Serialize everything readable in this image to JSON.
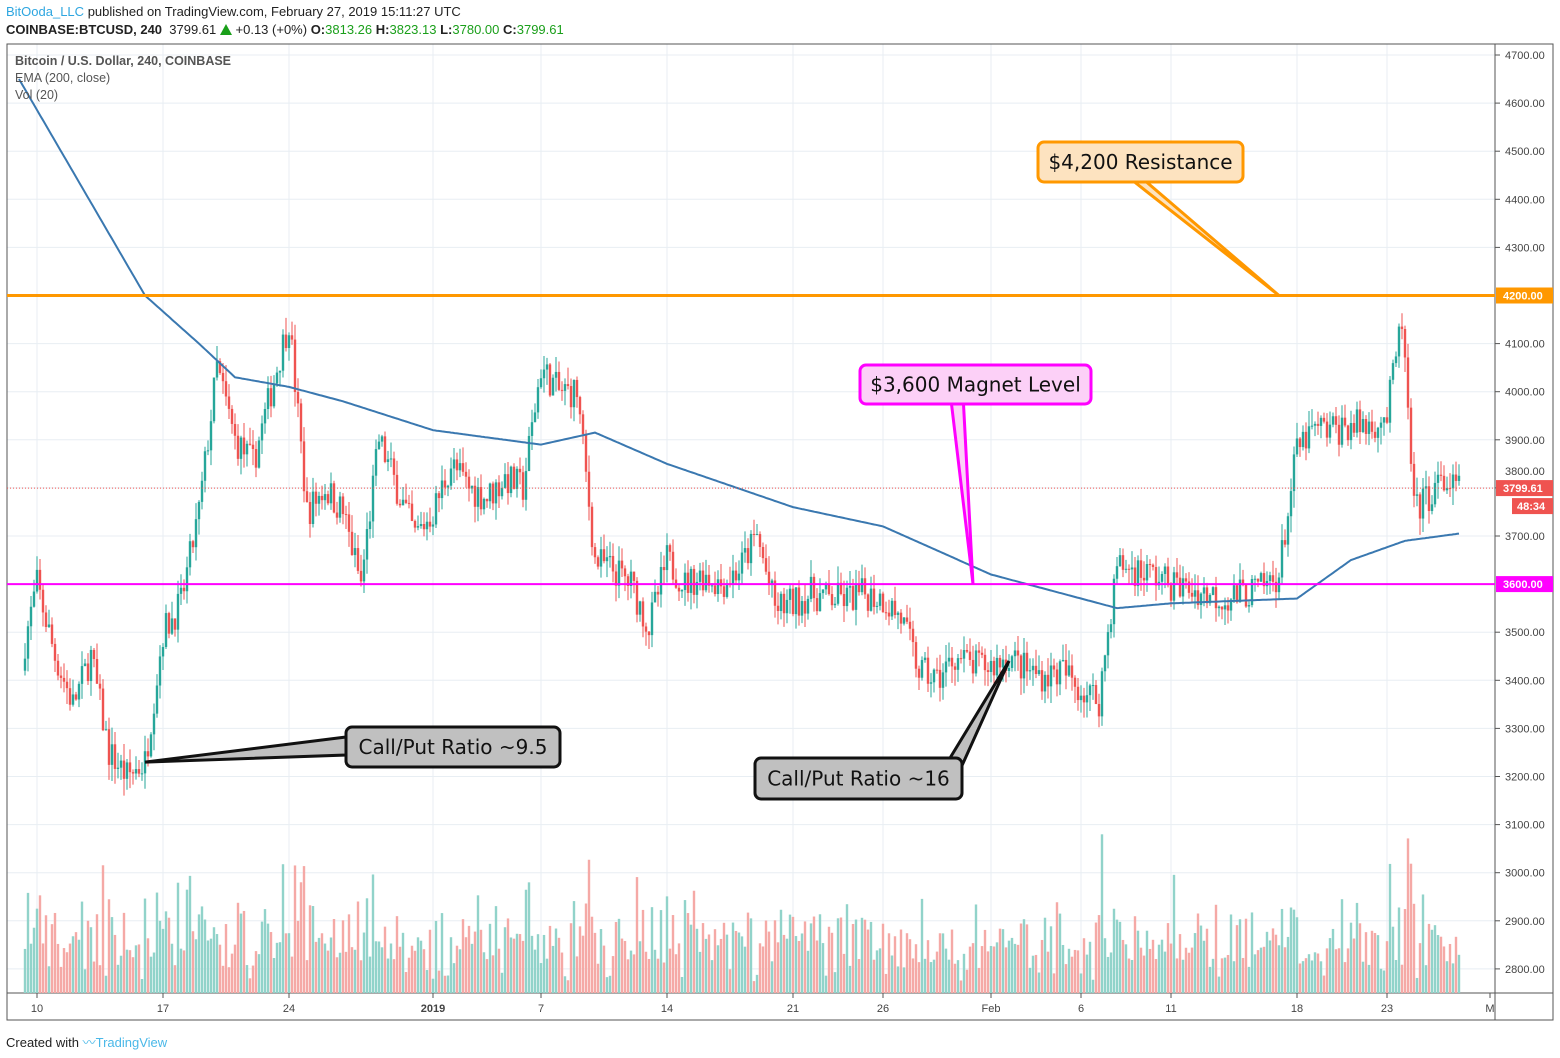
{
  "header": {
    "publisher": "BitOoda_LLC",
    "published_text": "published on TradingView.com, February 27, 2019 15:11:27 UTC",
    "symbol": "COINBASE:BTCUSD, 240",
    "last": "3799.61",
    "change": "+0.13 (+0%)",
    "o_label": "O:",
    "o": "3813.26",
    "h_label": "H:",
    "h": "3823.13",
    "l_label": "L:",
    "l": "3780.00",
    "c_label": "C:",
    "c": "3799.61"
  },
  "legend": {
    "title": "Bitcoin / U.S. Dollar, 240, COINBASE",
    "ema": "EMA (200, close)",
    "vol": "Vol (20)"
  },
  "footer": {
    "created": "Created with",
    "brand": "TradingView"
  },
  "colors": {
    "up": "#26a69a",
    "down": "#ef5350",
    "vol_up": "#91d3ca",
    "vol_down": "#f5a9a6",
    "ema": "#3a78b0",
    "resistance": "#ff9800",
    "magnet": "#ff00ff"
  },
  "chart_data": {
    "type": "candlestick",
    "interval": "240",
    "ylim": [
      2750,
      4720
    ],
    "y_ticks": [
      "2800.00",
      "2900.00",
      "3000.00",
      "3100.00",
      "3200.00",
      "3300.00",
      "3400.00",
      "3500.00",
      "3600.00",
      "3700.00",
      "3800.00",
      "3900.00",
      "4000.00",
      "4100.00",
      "4200.00",
      "4300.00",
      "4400.00",
      "4500.00",
      "4600.00",
      "4700.00"
    ],
    "x_ticks": [
      {
        "label": "10",
        "date": "2018-12-10"
      },
      {
        "label": "17",
        "date": "2018-12-17"
      },
      {
        "label": "24",
        "date": "2018-12-24"
      },
      {
        "label": "2019",
        "date": "2019-01-01"
      },
      {
        "label": "7",
        "date": "2019-01-07"
      },
      {
        "label": "14",
        "date": "2019-01-14"
      },
      {
        "label": "21",
        "date": "2019-01-21"
      },
      {
        "label": "26",
        "date": "2019-01-26"
      },
      {
        "label": "Feb",
        "date": "2019-02-01"
      },
      {
        "label": "6",
        "date": "2019-02-06"
      },
      {
        "label": "11",
        "date": "2019-02-11"
      },
      {
        "label": "18",
        "date": "2019-02-18"
      },
      {
        "label": "23",
        "date": "2019-02-23"
      },
      {
        "label": "M",
        "date": "2019-03-01"
      }
    ],
    "price_path": [
      [
        "2018-12-09",
        3420
      ],
      [
        "2018-12-10",
        3600
      ],
      [
        "2018-12-11",
        3450
      ],
      [
        "2018-12-12",
        3350
      ],
      [
        "2018-12-13",
        3450
      ],
      [
        "2018-12-14",
        3250
      ],
      [
        "2018-12-15",
        3200
      ],
      [
        "2018-12-16",
        3230
      ],
      [
        "2018-12-17",
        3500
      ],
      [
        "2018-12-18",
        3560
      ],
      [
        "2018-12-19",
        3750
      ],
      [
        "2018-12-20",
        4050
      ],
      [
        "2018-12-21",
        3900
      ],
      [
        "2018-12-22",
        3850
      ],
      [
        "2018-12-23",
        4000
      ],
      [
        "2018-12-24",
        4150
      ],
      [
        "2018-12-25",
        3750
      ],
      [
        "2018-12-26",
        3800
      ],
      [
        "2018-12-27",
        3750
      ],
      [
        "2018-12-28",
        3600
      ],
      [
        "2018-12-29",
        3900
      ],
      [
        "2018-12-30",
        3800
      ],
      [
        "2018-12-31",
        3700
      ],
      [
        "2019-01-01",
        3750
      ],
      [
        "2019-01-02",
        3850
      ],
      [
        "2019-01-03",
        3800
      ],
      [
        "2019-01-04",
        3780
      ],
      [
        "2019-01-05",
        3820
      ],
      [
        "2019-01-06",
        3800
      ],
      [
        "2019-01-07",
        4050
      ],
      [
        "2019-01-08",
        4000
      ],
      [
        "2019-01-09",
        4000
      ],
      [
        "2019-01-10",
        3650
      ],
      [
        "2019-01-11",
        3630
      ],
      [
        "2019-01-12",
        3600
      ],
      [
        "2019-01-13",
        3510
      ],
      [
        "2019-01-14",
        3650
      ],
      [
        "2019-01-15",
        3600
      ],
      [
        "2019-01-16",
        3620
      ],
      [
        "2019-01-17",
        3600
      ],
      [
        "2019-01-18",
        3630
      ],
      [
        "2019-01-19",
        3700
      ],
      [
        "2019-01-20",
        3550
      ],
      [
        "2019-01-21",
        3560
      ],
      [
        "2019-01-22",
        3580
      ],
      [
        "2019-01-23",
        3570
      ],
      [
        "2019-01-24",
        3570
      ],
      [
        "2019-01-25",
        3580
      ],
      [
        "2019-01-26",
        3570
      ],
      [
        "2019-01-27",
        3530
      ],
      [
        "2019-01-28",
        3420
      ],
      [
        "2019-01-29",
        3400
      ],
      [
        "2019-01-30",
        3450
      ],
      [
        "2019-01-31",
        3430
      ],
      [
        "2019-02-01",
        3430
      ],
      [
        "2019-02-02",
        3450
      ],
      [
        "2019-02-03",
        3420
      ],
      [
        "2019-02-04",
        3410
      ],
      [
        "2019-02-05",
        3420
      ],
      [
        "2019-02-06",
        3380
      ],
      [
        "2019-02-07",
        3360
      ],
      [
        "2019-02-08",
        3640
      ],
      [
        "2019-02-09",
        3630
      ],
      [
        "2019-02-10",
        3620
      ],
      [
        "2019-02-11",
        3600
      ],
      [
        "2019-02-12",
        3590
      ],
      [
        "2019-02-13",
        3580
      ],
      [
        "2019-02-14",
        3570
      ],
      [
        "2019-02-15",
        3580
      ],
      [
        "2019-02-16",
        3590
      ],
      [
        "2019-02-17",
        3620
      ],
      [
        "2019-02-18",
        3880
      ],
      [
        "2019-02-19",
        3920
      ],
      [
        "2019-02-20",
        3920
      ],
      [
        "2019-02-21",
        3930
      ],
      [
        "2019-02-22",
        3930
      ],
      [
        "2019-02-23",
        3950
      ],
      [
        "2019-02-23T20:00",
        4150
      ],
      [
        "2019-02-24T12:00",
        3750
      ],
      [
        "2019-02-25",
        3770
      ],
      [
        "2019-02-26",
        3810
      ],
      [
        "2019-02-27",
        3800
      ]
    ],
    "ema_path": [
      [
        "2018-12-09",
        4650
      ],
      [
        "2018-12-16",
        4200
      ],
      [
        "2018-12-19",
        4100
      ],
      [
        "2018-12-21",
        4030
      ],
      [
        "2018-12-24",
        4010
      ],
      [
        "2018-12-27",
        3980
      ],
      [
        "2019-01-01",
        3920
      ],
      [
        "2019-01-07",
        3890
      ],
      [
        "2019-01-10",
        3915
      ],
      [
        "2019-01-14",
        3850
      ],
      [
        "2019-01-21",
        3760
      ],
      [
        "2019-01-26",
        3720
      ],
      [
        "2019-02-01",
        3620
      ],
      [
        "2019-02-08",
        3550
      ],
      [
        "2019-02-11",
        3560
      ],
      [
        "2019-02-18",
        3570
      ],
      [
        "2019-02-21",
        3650
      ],
      [
        "2019-02-24",
        3690
      ],
      [
        "2019-02-27",
        3705
      ]
    ],
    "last_price_label": "3799.61",
    "countdown": "48:34",
    "levels": [
      {
        "price": 4200,
        "label": "4200.00",
        "color": "#ff9800"
      },
      {
        "price": 3600,
        "label": "3600.00",
        "color": "#ff00ff"
      }
    ],
    "annotations": [
      {
        "text": "$4,200 Resistance",
        "points_to": [
          "2019-02-17",
          4200
        ]
      },
      {
        "text": "$3,600 Magnet Level",
        "points_to": [
          "2019-01-31",
          3600
        ]
      },
      {
        "text": "Call/Put Ratio ~9.5",
        "points_to": [
          "2018-12-16",
          3230
        ]
      },
      {
        "text": "Call/Put Ratio ~16",
        "points_to": [
          "2019-02-02",
          3440
        ]
      }
    ]
  }
}
